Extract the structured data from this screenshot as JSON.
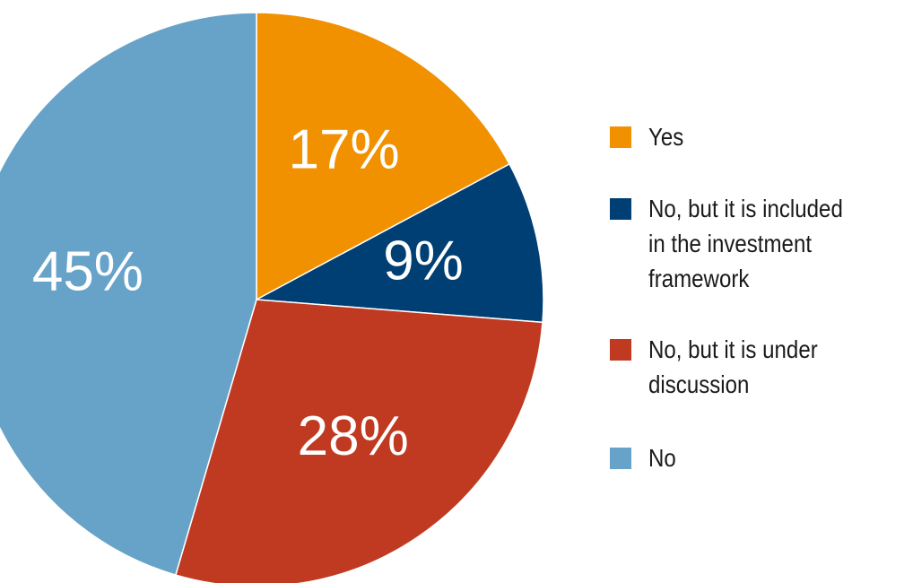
{
  "chart_data": {
    "type": "pie",
    "title": "",
    "labels": [
      "Yes",
      "No, but it is included in the investment framework",
      "No, but it is under discussion",
      "No"
    ],
    "values": [
      17,
      9,
      28,
      45
    ],
    "value_labels": [
      "17%",
      "9%",
      "28%",
      "45%"
    ],
    "colors": [
      "#F29100",
      "#003F73",
      "#C03A21",
      "#67A3C8"
    ],
    "start_angle_deg": 0,
    "direction": "clockwise",
    "legend_position": "right"
  },
  "legend": {
    "items": [
      {
        "label": "Yes",
        "color": "#F29100"
      },
      {
        "label": "No, but it is included\nin the investment\nframework",
        "color": "#003F73"
      },
      {
        "label": "No, but it is under\ndiscussion",
        "color": "#C03A21"
      },
      {
        "label": "No",
        "color": "#67A3C8"
      }
    ]
  }
}
